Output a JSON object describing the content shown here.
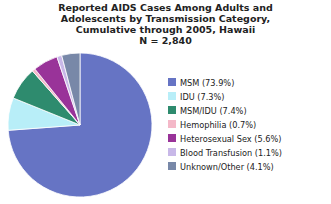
{
  "chart_data": {
    "type": "pie",
    "title": "Reported AIDS Cases Among Adults and\nAdolescents by Transmission Category,\nCumulative through 2005, Hawaii\nN = 2,840",
    "categories": [
      "MSM (73.9%)",
      "IDU (7.3%)",
      "MSM/IDU (7.4%)",
      "Hemophilia (0.7%)",
      "Heterosexual Sex (5.6%)",
      "Blood Transfusion (1.1%)",
      "Unknown/Other (4.1%)"
    ],
    "values": [
      73.9,
      7.3,
      7.4,
      0.7,
      5.6,
      1.1,
      4.1
    ],
    "colors": [
      "#6674c4",
      "#b8eef8",
      "#2e8b6e",
      "#f4b8c8",
      "#993399",
      "#c8b8e8",
      "#7888a8"
    ],
    "legend": "right"
  }
}
